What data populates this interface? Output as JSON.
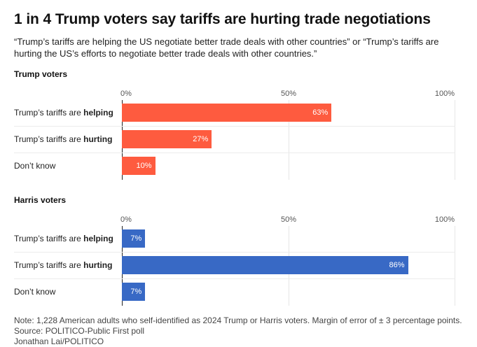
{
  "title": "1 in 4 Trump voters say tariffs are hurting trade negotiations",
  "subtitle": "“Trump’s tariffs are helping the US negotiate better trade deals with other countries” or “Trump’s tariffs are hurting the US’s efforts to negotiate better trade deals with other countries.”",
  "footer": {
    "note": "Note: 1,228 American adults who self-identified as 2024 Trump or Harris voters. Margin of error of ± 3 percentage points.",
    "source": "Source: POLITICO-Public First poll",
    "credit": "Jonathan Lai/POLITICO"
  },
  "chart_data": [
    {
      "type": "bar",
      "orientation": "horizontal",
      "title": "Trump voters",
      "categories": [
        {
          "prefix": "Trump’s tariffs are ",
          "bold": "helping"
        },
        {
          "prefix": "Trump’s tariffs are ",
          "bold": "hurting"
        },
        {
          "prefix": "Don’t know",
          "bold": ""
        }
      ],
      "values": [
        63,
        27,
        10
      ],
      "value_labels": [
        "63%",
        "27%",
        "10%"
      ],
      "xlim": [
        0,
        100
      ],
      "ticks": [
        "0%",
        "50%",
        "100%"
      ],
      "tick_values": [
        0,
        50,
        100
      ],
      "color": "#fe5b3f",
      "grid": true,
      "legend": "none"
    },
    {
      "type": "bar",
      "orientation": "horizontal",
      "title": "Harris voters",
      "categories": [
        {
          "prefix": "Trump’s tariffs are ",
          "bold": "helping"
        },
        {
          "prefix": "Trump’s tariffs are ",
          "bold": "hurting"
        },
        {
          "prefix": "Don’t know",
          "bold": ""
        }
      ],
      "values": [
        7,
        86,
        7
      ],
      "value_labels": [
        "7%",
        "86%",
        "7%"
      ],
      "xlim": [
        0,
        100
      ],
      "ticks": [
        "0%",
        "50%",
        "100%"
      ],
      "tick_values": [
        0,
        50,
        100
      ],
      "color": "#3869c5",
      "grid": true,
      "legend": "none"
    }
  ]
}
